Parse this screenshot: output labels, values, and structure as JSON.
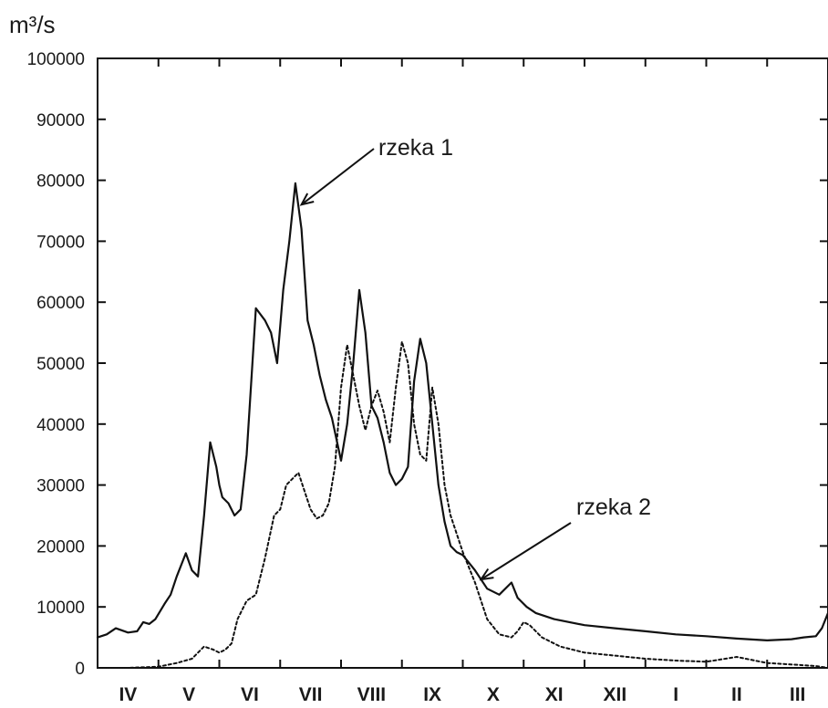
{
  "chart_data": {
    "type": "line",
    "ylabel": "m³/s",
    "ylim": [
      0,
      100000
    ],
    "yticks": [
      0,
      10000,
      20000,
      30000,
      40000,
      50000,
      60000,
      70000,
      80000,
      90000,
      100000
    ],
    "ytick_labels": [
      "0",
      "10000",
      "20000",
      "30000",
      "40000",
      "50000",
      "60000",
      "70000",
      "80000",
      "90000",
      "100000"
    ],
    "x_unit": "month (April → March)",
    "xlim": [
      0,
      12
    ],
    "categories": [
      "IV",
      "V",
      "VI",
      "VII",
      "VIII",
      "IX",
      "X",
      "XI",
      "XII",
      "I",
      "II",
      "III"
    ],
    "series": [
      {
        "name": "rzeka 1",
        "style": "solid",
        "color": "#111111",
        "x": [
          0.0,
          0.15,
          0.3,
          0.5,
          0.65,
          0.75,
          0.85,
          0.95,
          1.1,
          1.2,
          1.3,
          1.45,
          1.55,
          1.65,
          1.75,
          1.85,
          1.95,
          2.0,
          2.05,
          2.15,
          2.25,
          2.35,
          2.45,
          2.6,
          2.75,
          2.85,
          2.95,
          3.05,
          3.15,
          3.25,
          3.35,
          3.45,
          3.55,
          3.65,
          3.75,
          3.85,
          4.0,
          4.1,
          4.2,
          4.3,
          4.4,
          4.5,
          4.6,
          4.7,
          4.8,
          4.9,
          5.0,
          5.1,
          5.2,
          5.3,
          5.4,
          5.5,
          5.6,
          5.7,
          5.8,
          5.9,
          6.0,
          6.2,
          6.4,
          6.6,
          6.8,
          6.9,
          6.95,
          7.05,
          7.2,
          7.5,
          8.0,
          8.5,
          9.0,
          9.5,
          10.0,
          10.5,
          11.0,
          11.4,
          11.6,
          11.8,
          11.9,
          12.0
        ],
        "y": [
          5000,
          5500,
          6500,
          5800,
          6000,
          7500,
          7200,
          8000,
          10500,
          12000,
          15000,
          18800,
          16000,
          15000,
          25000,
          37000,
          33000,
          30000,
          28000,
          27000,
          25000,
          26000,
          35000,
          59000,
          57000,
          55000,
          50000,
          62000,
          70000,
          79500,
          72000,
          57000,
          53000,
          48000,
          44000,
          41000,
          34000,
          40000,
          50000,
          62000,
          55000,
          43000,
          41000,
          37000,
          32000,
          30000,
          31000,
          33000,
          47000,
          54000,
          50000,
          40000,
          30000,
          24000,
          20000,
          19000,
          18500,
          16000,
          13000,
          12000,
          14000,
          11500,
          11000,
          10000,
          9000,
          8000,
          7000,
          6500,
          6000,
          5500,
          5200,
          4800,
          4500,
          4700,
          5000,
          5200,
          6500,
          9000
        ]
      },
      {
        "name": "rzeka 2",
        "style": "dotted",
        "color": "#111111",
        "x": [
          0.0,
          0.5,
          1.0,
          1.3,
          1.55,
          1.75,
          1.9,
          2.0,
          2.1,
          2.2,
          2.3,
          2.45,
          2.6,
          2.75,
          2.9,
          3.0,
          3.1,
          3.3,
          3.5,
          3.6,
          3.7,
          3.8,
          3.9,
          4.0,
          4.1,
          4.2,
          4.3,
          4.4,
          4.5,
          4.6,
          4.7,
          4.8,
          4.9,
          5.0,
          5.1,
          5.2,
          5.3,
          5.4,
          5.5,
          5.6,
          5.7,
          5.8,
          5.9,
          6.0,
          6.2,
          6.4,
          6.6,
          6.8,
          6.9,
          7.0,
          7.1,
          7.3,
          7.6,
          8.0,
          8.5,
          9.0,
          9.5,
          10.0,
          10.5,
          11.0,
          11.5,
          11.8,
          12.0
        ],
        "y": [
          0,
          0,
          200,
          800,
          1500,
          3500,
          3000,
          2500,
          3000,
          4000,
          8000,
          11000,
          12000,
          18000,
          25000,
          26000,
          30000,
          32000,
          26000,
          24500,
          25000,
          27000,
          33000,
          46000,
          53000,
          48000,
          43000,
          39000,
          43000,
          45500,
          42000,
          37000,
          46000,
          53500,
          50000,
          40000,
          35000,
          34000,
          46000,
          40000,
          30000,
          25000,
          22000,
          19000,
          14000,
          8000,
          5500,
          5000,
          6000,
          7500,
          7000,
          5000,
          3500,
          2500,
          2000,
          1500,
          1200,
          1000,
          1800,
          800,
          500,
          300,
          0
        ]
      }
    ],
    "annotations": [
      {
        "text": "rzeka 1",
        "target": {
          "x": 3.35,
          "y": 76000
        },
        "series": "rzeka 1"
      },
      {
        "text": "rzeka 2",
        "target": {
          "x": 6.3,
          "y": 14500
        },
        "series": "rzeka 2"
      }
    ],
    "grid": false,
    "legend": "none"
  }
}
